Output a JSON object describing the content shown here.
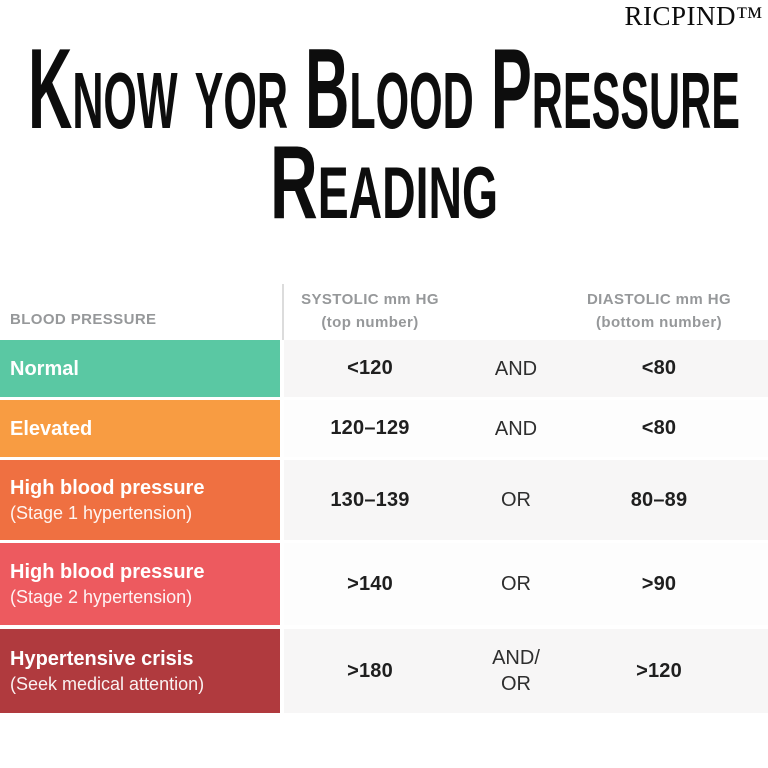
{
  "brand": {
    "logo": "RICPIND™"
  },
  "title": {
    "line1": "Know yor Blood Pressure",
    "line2": "Reading"
  },
  "table": {
    "headers": {
      "category": "BLOOD PRESSURE",
      "systolic_line1": "SYSTOLIC mm HG",
      "systolic_line2": "(top number)",
      "diastolic_line1": "DIASTOLIC mm HG",
      "diastolic_line2": "(bottom number)"
    },
    "rows": [
      {
        "label": "Normal",
        "sublabel": "",
        "color": "#5ac8a3",
        "systolic": "<120",
        "connector": "AND",
        "diastolic": "<80"
      },
      {
        "label": "Elevated",
        "sublabel": "",
        "color": "#f89c42",
        "systolic": "120–129",
        "connector": "AND",
        "diastolic": "<80"
      },
      {
        "label": "High blood pressure",
        "sublabel": "(Stage 1 hypertension)",
        "color": "#ef7041",
        "systolic": "130–139",
        "connector": "OR",
        "diastolic": "80–89"
      },
      {
        "label": "High blood pressure",
        "sublabel": "(Stage 2 hypertension)",
        "color": "#ed5a5f",
        "systolic": ">140",
        "connector": "OR",
        "diastolic": ">90"
      },
      {
        "label": "Hypertensive crisis",
        "sublabel": "(Seek medical attention)",
        "color": "#b03a3e",
        "systolic": ">180",
        "connector": "AND/\nOR",
        "diastolic": ">120"
      }
    ]
  },
  "chart_data": {
    "type": "table",
    "title": "Know yor Blood Pressure Reading",
    "columns": [
      "BLOOD PRESSURE",
      "SYSTOLIC mm HG (top number)",
      "AND/OR",
      "DIASTOLIC mm HG (bottom number)"
    ],
    "rows": [
      [
        "Normal",
        "<120",
        "AND",
        "<80"
      ],
      [
        "Elevated",
        "120–129",
        "AND",
        "<80"
      ],
      [
        "High blood pressure (Stage 1 hypertension)",
        "130–139",
        "OR",
        "80–89"
      ],
      [
        "High blood pressure (Stage 2 hypertension)",
        ">140",
        "OR",
        ">90"
      ],
      [
        "Hypertensive crisis (Seek medical attention)",
        ">180",
        "AND/OR",
        ">120"
      ]
    ],
    "row_colors": [
      "#5ac8a3",
      "#f89c42",
      "#ef7041",
      "#ed5a5f",
      "#b03a3e"
    ]
  }
}
